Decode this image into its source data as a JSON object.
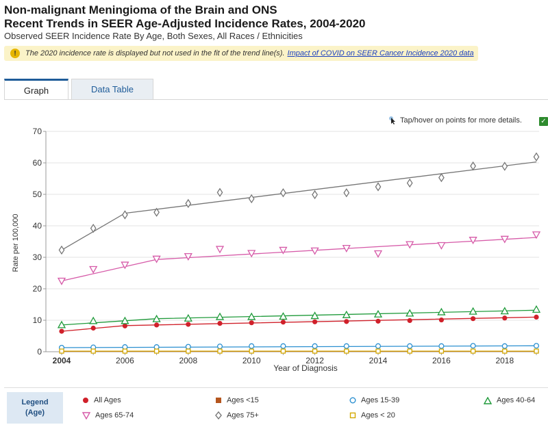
{
  "header": {
    "title_line1": "Non-malignant Meningioma of the Brain and ONS",
    "title_line2": "Recent Trends in SEER Age-Adjusted Incidence Rates, 2004-2020",
    "subtitle": "Observed SEER Incidence Rate By Age, Both Sexes, All Races / Ethnicities"
  },
  "notice": {
    "text": "The 2020 incidence rate is displayed but not used in the fit of the trend line(s).",
    "link": "Impact of COVID on SEER Cancer Incidence 2020 data",
    "icon": "warning-icon"
  },
  "tabs": [
    {
      "label": "Graph",
      "active": true
    },
    {
      "label": "Data Table",
      "active": false
    }
  ],
  "hover_hint": "Tap/hover on points for more details.",
  "legend": {
    "title_line1": "Legend",
    "title_line2": "(Age)"
  },
  "chart_data": {
    "type": "scatter",
    "xlabel": "Year of Diagnosis",
    "ylabel": "Rate per 100,000",
    "xlim": [
      2004,
      2019
    ],
    "ylim": [
      0,
      70
    ],
    "x_ticks": [
      "2004",
      "2006",
      "2008",
      "2010",
      "2012",
      "2014",
      "2016",
      "2018"
    ],
    "y_ticks": [
      "0",
      "10",
      "20",
      "30",
      "40",
      "50",
      "60",
      "70"
    ],
    "grid": "horizontal",
    "x": [
      2004,
      2005,
      2006,
      2007,
      2008,
      2009,
      2010,
      2011,
      2012,
      2013,
      2014,
      2015,
      2016,
      2017,
      2018,
      2019
    ],
    "series": [
      {
        "name": "All Ages",
        "marker": "filled-circle",
        "color": "#d0202a",
        "values": [
          6.5,
          7.5,
          8.2,
          8.5,
          8.7,
          9.0,
          9.2,
          9.4,
          9.5,
          9.6,
          9.7,
          9.9,
          10.1,
          10.5,
          10.7,
          11.0
        ],
        "trend": [
          [
            2004,
            6.5
          ],
          [
            2006,
            8.3
          ],
          [
            2019,
            11.0
          ]
        ]
      },
      {
        "name": "Ages <15",
        "marker": "filled-square",
        "color": "#b5561e",
        "values": [
          0.1,
          0.1,
          0.1,
          0.1,
          0.1,
          0.1,
          0.1,
          0.1,
          0.1,
          0.1,
          0.1,
          0.1,
          0.1,
          0.1,
          0.1,
          0.1
        ],
        "trend": [
          [
            2004,
            0.1
          ],
          [
            2019,
            0.1
          ]
        ]
      },
      {
        "name": "Ages 15-39",
        "marker": "open-circle",
        "color": "#2a8fd0",
        "values": [
          1.3,
          1.4,
          1.5,
          1.5,
          1.6,
          1.7,
          1.8,
          1.8,
          1.8,
          1.8,
          1.8,
          1.8,
          1.8,
          1.9,
          1.8,
          1.9
        ],
        "trend": [
          [
            2004,
            1.3
          ],
          [
            2019,
            1.9
          ]
        ]
      },
      {
        "name": "Ages 40-64",
        "marker": "open-triangle-up",
        "color": "#1f9a3a",
        "values": [
          8.5,
          9.8,
          9.8,
          10.4,
          10.6,
          11.1,
          11.1,
          11.2,
          11.4,
          11.7,
          11.9,
          12.2,
          12.6,
          12.8,
          12.9,
          13.4
        ],
        "trend": [
          [
            2004,
            8.5
          ],
          [
            2007,
            10.5
          ],
          [
            2019,
            13.2
          ]
        ]
      },
      {
        "name": "Ages 65-74",
        "marker": "open-triangle-down",
        "color": "#d65aa8",
        "values": [
          22.5,
          26.2,
          27.6,
          29.5,
          30.3,
          32.6,
          31.3,
          32.3,
          32.1,
          32.9,
          31.2,
          34.1,
          33.8,
          35.5,
          35.8,
          37.2
        ],
        "trend": [
          [
            2004,
            22.5
          ],
          [
            2007,
            29.3
          ],
          [
            2019,
            36.3
          ]
        ]
      },
      {
        "name": "Ages 75+",
        "marker": "open-diamond",
        "color": "#757575",
        "values": [
          32.3,
          39.2,
          43.5,
          44.3,
          47.1,
          50.6,
          48.6,
          50.5,
          49.9,
          50.5,
          52.4,
          53.6,
          55.3,
          59.0,
          58.9,
          61.9
        ],
        "trend": [
          [
            2004,
            32.3
          ],
          [
            2006,
            44.0
          ],
          [
            2019,
            60.3
          ]
        ]
      },
      {
        "name": "Ages < 20",
        "marker": "open-square",
        "color": "#d4a800",
        "values": [
          0.2,
          0.2,
          0.2,
          0.2,
          0.2,
          0.2,
          0.2,
          0.2,
          0.2,
          0.2,
          0.2,
          0.2,
          0.2,
          0.2,
          0.2,
          0.2
        ],
        "trend": [
          [
            2004,
            0.2
          ],
          [
            2019,
            0.2
          ]
        ]
      }
    ]
  }
}
